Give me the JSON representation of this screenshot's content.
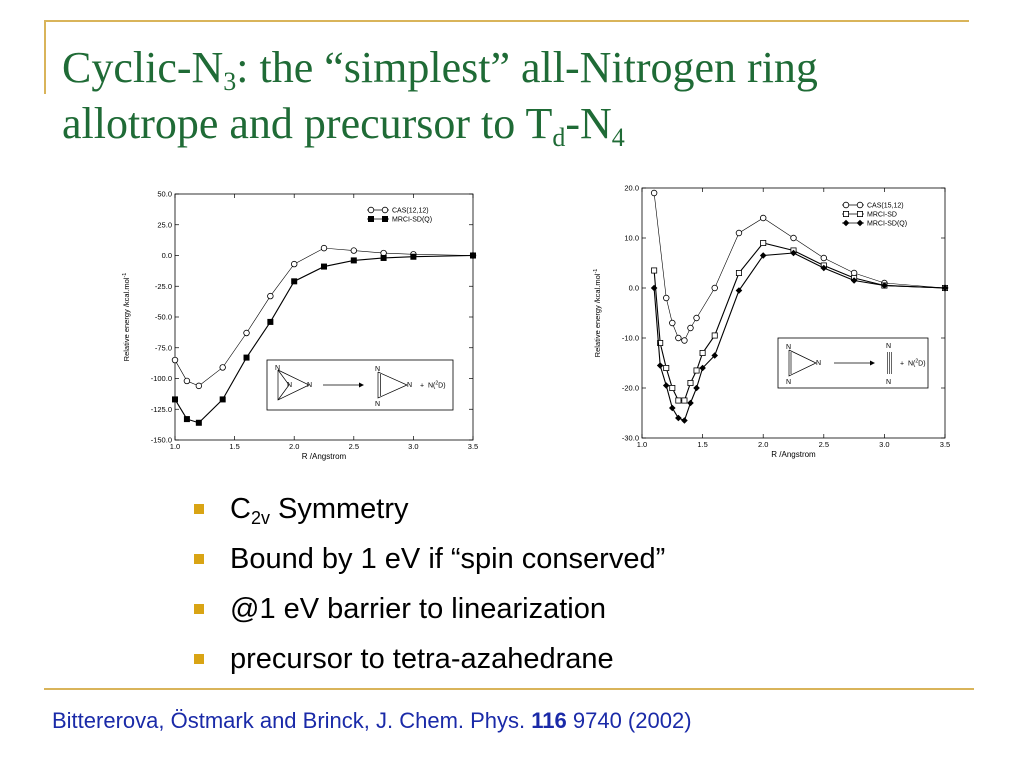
{
  "title": {
    "p1": "Cyclic-N",
    "sub1": "3",
    "p2": ": the “simplest” all-Nitrogen ring",
    "p3": "allotrope and precursor to T",
    "sub2": "d",
    "p4": "-N",
    "sub3": "4"
  },
  "bullets": [
    {
      "main": "C",
      "sub": "2v",
      "rest": " Symmetry"
    },
    {
      "main": "Bound by 1 eV if “spin conserved”"
    },
    {
      "main": "@1 eV barrier to linearization"
    },
    {
      "main": "precursor to tetra-azahedrane"
    }
  ],
  "citation": {
    "authors": "Bittererova, Östmark and Brinck, J. Chem. Phys. ",
    "volume": "116",
    "rest": " 9740 (2002)"
  },
  "colors": {
    "title": "#1f6b36",
    "accent_line": "#d9b45a",
    "bullet": "#d9a414",
    "citation": "#1a2aa8"
  },
  "chart_data": [
    {
      "type": "line",
      "xlabel": "R /Angstrom",
      "ylabel": "Relative energy /kcal.mol",
      "ylabel_sup": "-1",
      "xlim": [
        1.0,
        3.5
      ],
      "ylim": [
        -150,
        50
      ],
      "xticks": [
        "1.0",
        "1.5",
        "2.0",
        "2.5",
        "3.0",
        "3.5"
      ],
      "yticks": [
        "50.0",
        "25.0",
        "0.0",
        "-25.0",
        "-50.0",
        "-75.0",
        "-100.0",
        "-125.0",
        "-150.0"
      ],
      "series": [
        {
          "name": "CAS(12,12)",
          "marker": "open-circle",
          "x": [
            1.0,
            1.1,
            1.2,
            1.4,
            1.6,
            1.8,
            2.0,
            2.25,
            2.5,
            2.75,
            3.0,
            3.5
          ],
          "y": [
            -85,
            -102,
            -106,
            -91,
            -63,
            -33,
            -7,
            6,
            4,
            2,
            1,
            0
          ]
        },
        {
          "name": "MRCI-SD(Q)",
          "marker": "filled-square",
          "x": [
            1.0,
            1.1,
            1.2,
            1.4,
            1.6,
            1.8,
            2.0,
            2.25,
            2.5,
            2.75,
            3.0,
            3.5
          ],
          "y": [
            -117,
            -133,
            -136,
            -117,
            -83,
            -54,
            -21,
            -9,
            -4,
            -2,
            -1,
            0
          ]
        }
      ],
      "inset": {
        "left": [
          "N",
          "N",
          "N"
        ],
        "right": [
          "N",
          "N",
          "N"
        ],
        "plus": "+",
        "product": "N(",
        "term_sup": "2",
        "term": "D)"
      }
    },
    {
      "type": "line",
      "xlabel": "R /Angstrom",
      "ylabel": "Relative energy /kcal.mol",
      "ylabel_sup": "-1",
      "xlim": [
        1.0,
        3.5
      ],
      "ylim": [
        -30,
        20
      ],
      "xticks": [
        "1.0",
        "1.5",
        "2.0",
        "2.5",
        "3.0",
        "3.5"
      ],
      "yticks": [
        "20.0",
        "10.0",
        "0.0",
        "-10.0",
        "-20.0",
        "-30.0"
      ],
      "series": [
        {
          "name": "CAS(15,12)",
          "marker": "open-circle",
          "x": [
            1.1,
            1.2,
            1.25,
            1.3,
            1.35,
            1.4,
            1.45,
            1.6,
            1.8,
            2.0,
            2.25,
            2.5,
            2.75,
            3.0,
            3.5
          ],
          "y": [
            19,
            -2,
            -7,
            -10,
            -10.5,
            -8,
            -6,
            0,
            11,
            14,
            10,
            6,
            3,
            1,
            0
          ]
        },
        {
          "name": "MRCI-SD",
          "marker": "open-square",
          "x": [
            1.1,
            1.15,
            1.2,
            1.25,
            1.3,
            1.35,
            1.4,
            1.45,
            1.5,
            1.6,
            1.8,
            2.0,
            2.25,
            2.5,
            2.75,
            3.0,
            3.5
          ],
          "y": [
            3.5,
            -11,
            -16,
            -20,
            -22.5,
            -22.5,
            -19,
            -16.5,
            -13,
            -9.5,
            3,
            9,
            7.5,
            4.5,
            2,
            0.5,
            0
          ]
        },
        {
          "name": "MRCI-SD(Q)",
          "marker": "filled-diamond",
          "x": [
            1.1,
            1.15,
            1.2,
            1.25,
            1.3,
            1.35,
            1.4,
            1.45,
            1.5,
            1.6,
            1.8,
            2.0,
            2.25,
            2.5,
            2.75,
            3.0,
            3.5
          ],
          "y": [
            0,
            -15.5,
            -19.5,
            -24,
            -26,
            -26.5,
            -23,
            -20,
            -16,
            -13.5,
            -0.5,
            6.5,
            7,
            4,
            1.5,
            0.5,
            0
          ]
        }
      ],
      "inset": {
        "left": [
          "N",
          "N",
          "N"
        ],
        "right": [
          "N",
          "N",
          "N"
        ],
        "plus": "+",
        "product": "N(",
        "term_sup": "2",
        "term": "D)"
      }
    }
  ]
}
